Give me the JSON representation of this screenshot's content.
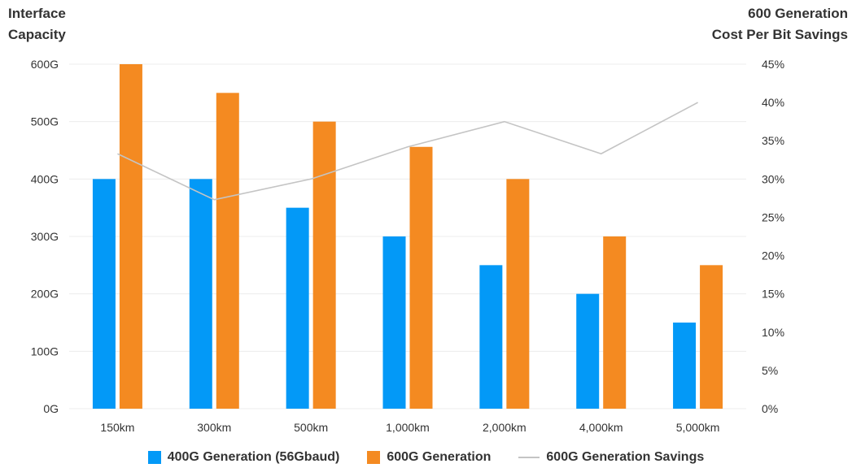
{
  "axis_titles": {
    "left_line1": "Interface",
    "left_line2": "Capacity",
    "right_line1": "600 Generation",
    "right_line2": "Cost Per Bit Savings"
  },
  "legend": {
    "series1": "400G Generation (56Gbaud)",
    "series2": "600G Generation",
    "series3": "600G Generation Savings"
  },
  "colors": {
    "series1": "#0399f7",
    "series2": "#f48a21",
    "series3": "#c4c4c4",
    "grid": "#ececec"
  },
  "chart_data": {
    "type": "bar",
    "categories": [
      "150km",
      "300km",
      "500km",
      "1,000km",
      "2,000km",
      "4,000km",
      "5,000km"
    ],
    "series": [
      {
        "name": "400G Generation (56Gbaud)",
        "type": "bar",
        "axis": "left",
        "values": [
          400,
          400,
          350,
          300,
          250,
          200,
          150
        ]
      },
      {
        "name": "600G Generation",
        "type": "bar",
        "axis": "left",
        "values": [
          600,
          550,
          500,
          456,
          400,
          300,
          250
        ]
      },
      {
        "name": "600G Generation Savings",
        "type": "line",
        "axis": "right",
        "values": [
          33.3,
          27.3,
          30.0,
          34.2,
          37.5,
          33.3,
          40.0
        ]
      }
    ],
    "y_left": {
      "min": 0,
      "max": 600,
      "ticks": [
        "0G",
        "100G",
        "200G",
        "300G",
        "400G",
        "500G",
        "600G"
      ]
    },
    "y_right": {
      "min": 0,
      "max": 45,
      "ticks": [
        "0%",
        "5%",
        "10%",
        "15%",
        "20%",
        "25%",
        "30%",
        "35%",
        "40%",
        "45%"
      ]
    },
    "grid": true,
    "legend_position": "bottom"
  }
}
